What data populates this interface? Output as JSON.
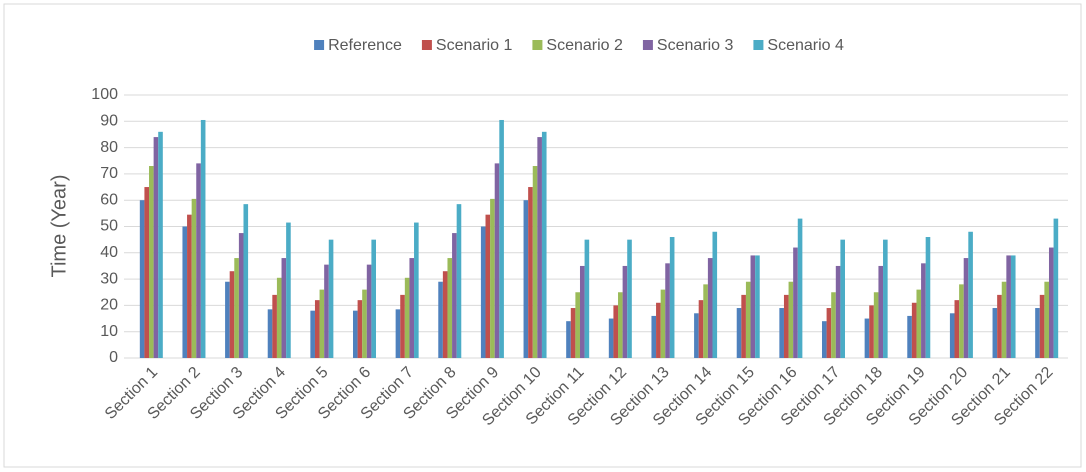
{
  "chart_data": {
    "type": "bar",
    "ylabel": "Time (Year)",
    "categories": [
      "Section 1",
      "Section 2",
      "Section 3",
      "Section 4",
      "Section 5",
      "Section 6",
      "Section 7",
      "Section 8",
      "Section 9",
      "Section 10",
      "Section 11",
      "Section 12",
      "Section 13",
      "Section 14",
      "Section 15",
      "Section 16",
      "Section 17",
      "Section 18",
      "Section 19",
      "Section 20",
      "Section 21",
      "Section 22"
    ],
    "series": [
      {
        "name": "Reference",
        "color": "#4f81bd",
        "values": [
          60,
          50,
          29,
          18.5,
          18,
          18,
          18.5,
          29,
          50,
          60,
          14,
          15,
          16,
          17,
          19,
          19,
          14,
          15,
          16,
          17,
          19,
          19
        ]
      },
      {
        "name": "Scenario 1",
        "color": "#c0504d",
        "values": [
          65,
          54.5,
          33,
          24,
          22,
          22,
          24,
          33,
          54.5,
          65,
          19,
          20,
          21,
          22,
          24,
          24,
          19,
          20,
          21,
          22,
          24,
          24
        ]
      },
      {
        "name": "Scenario 2",
        "color": "#9bbb59",
        "values": [
          73,
          60.5,
          38,
          30.5,
          26,
          26,
          30.5,
          38,
          60.5,
          73,
          25,
          25,
          26,
          28,
          29,
          29,
          25,
          25,
          26,
          28,
          29,
          29
        ]
      },
      {
        "name": "Scenario 3",
        "color": "#8064a2",
        "values": [
          84,
          74,
          47.5,
          38,
          35.5,
          35.5,
          38,
          47.5,
          74,
          84,
          35,
          35,
          36,
          38,
          39,
          42,
          35,
          35,
          36,
          38,
          39,
          42
        ]
      },
      {
        "name": "Scenario 4",
        "color": "#4bacc6",
        "values": [
          86,
          90.5,
          58.5,
          51.5,
          45,
          45,
          51.5,
          58.5,
          90.5,
          86,
          45,
          45,
          46,
          48,
          39,
          53,
          45,
          45,
          46,
          48,
          39,
          53
        ]
      }
    ],
    "ylim": [
      0,
      100
    ],
    "yticks": [
      0,
      10,
      20,
      30,
      40,
      50,
      60,
      70,
      80,
      90,
      100
    ],
    "grid": true,
    "legend": "top"
  }
}
